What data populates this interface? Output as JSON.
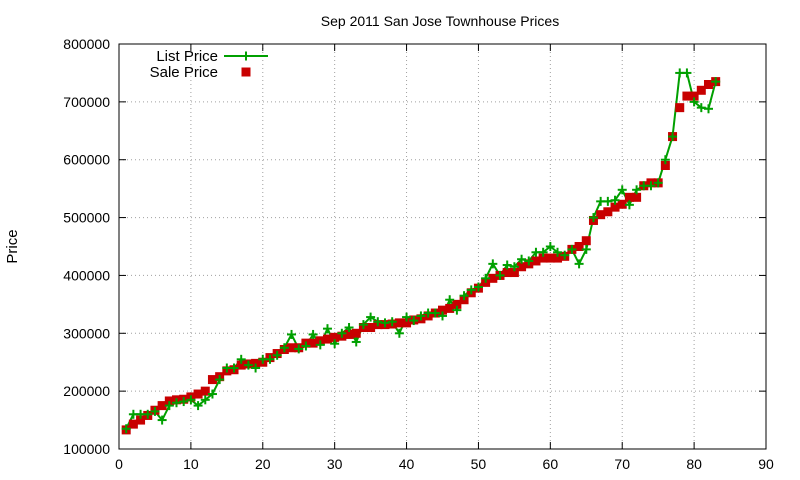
{
  "chart_data": {
    "type": "line",
    "title": "Sep 2011 San Jose Townhouse Prices",
    "xlabel": "",
    "ylabel": "Price",
    "xlim": [
      0,
      90
    ],
    "ylim": [
      100000,
      800000
    ],
    "xticks": [
      "0",
      "10",
      "20",
      "30",
      "40",
      "50",
      "60",
      "70",
      "80",
      "90"
    ],
    "yticks": [
      "100000",
      "200000",
      "300000",
      "400000",
      "500000",
      "600000",
      "700000",
      "800000"
    ],
    "grid": true,
    "legend_position": "top-left",
    "series": [
      {
        "name": "List Price",
        "style": "line-with-plus-markers",
        "color": "#00a000",
        "x": [
          1,
          2,
          3,
          4,
          5,
          6,
          7,
          8,
          9,
          10,
          11,
          12,
          13,
          14,
          15,
          16,
          17,
          18,
          19,
          20,
          21,
          22,
          23,
          24,
          25,
          26,
          27,
          28,
          29,
          30,
          31,
          32,
          33,
          34,
          35,
          36,
          37,
          38,
          39,
          40,
          41,
          42,
          43,
          44,
          45,
          46,
          47,
          48,
          49,
          50,
          51,
          52,
          53,
          54,
          55,
          56,
          57,
          58,
          59,
          60,
          61,
          62,
          63,
          64,
          65,
          66,
          67,
          68,
          69,
          70,
          71,
          72,
          73,
          74,
          75,
          76,
          77,
          78,
          79,
          80,
          81,
          82,
          83
        ],
        "y": [
          135000,
          160000,
          160000,
          160000,
          165000,
          150000,
          175000,
          180000,
          182000,
          185000,
          175000,
          185000,
          195000,
          220000,
          240000,
          240000,
          255000,
          245000,
          240000,
          255000,
          255000,
          262000,
          275000,
          298000,
          273000,
          278000,
          298000,
          280000,
          308000,
          282000,
          300000,
          310000,
          285000,
          315000,
          328000,
          320000,
          318000,
          320000,
          300000,
          328000,
          322000,
          330000,
          335000,
          335000,
          330000,
          358000,
          340000,
          365000,
          375000,
          380000,
          395000,
          420000,
          400000,
          418000,
          415000,
          428000,
          425000,
          440000,
          440000,
          450000,
          440000,
          435000,
          445000,
          420000,
          445000,
          500000,
          528000,
          528000,
          530000,
          548000,
          522000,
          548000,
          555000,
          555000,
          560000,
          600000,
          640000,
          750000,
          750000,
          700000,
          690000,
          688000,
          735000
        ]
      },
      {
        "name": "Sale Price",
        "style": "square-markers",
        "color": "#c80000",
        "x": [
          1,
          2,
          3,
          4,
          5,
          6,
          7,
          8,
          9,
          10,
          11,
          12,
          13,
          14,
          15,
          16,
          17,
          18,
          19,
          20,
          21,
          22,
          23,
          24,
          25,
          26,
          27,
          28,
          29,
          30,
          31,
          32,
          33,
          34,
          35,
          36,
          37,
          38,
          39,
          40,
          41,
          42,
          43,
          44,
          45,
          46,
          47,
          48,
          49,
          50,
          51,
          52,
          53,
          54,
          55,
          56,
          57,
          58,
          59,
          60,
          61,
          62,
          63,
          64,
          65,
          66,
          67,
          68,
          69,
          70,
          71,
          72,
          73,
          74,
          75,
          76,
          77,
          78,
          79,
          80,
          81,
          82,
          83
        ],
        "y": [
          133000,
          143000,
          150000,
          158000,
          167000,
          175000,
          183000,
          185000,
          186000,
          190000,
          195000,
          200000,
          220000,
          225000,
          235000,
          237000,
          245000,
          247000,
          248000,
          250000,
          258000,
          265000,
          272000,
          275000,
          275000,
          283000,
          283000,
          287000,
          290000,
          293000,
          295000,
          298000,
          300000,
          310000,
          310000,
          315000,
          315000,
          316000,
          318000,
          318000,
          323000,
          325000,
          330000,
          335000,
          340000,
          343000,
          350000,
          358000,
          370000,
          378000,
          388000,
          395000,
          400000,
          405000,
          405000,
          415000,
          420000,
          425000,
          430000,
          430000,
          430000,
          433000,
          445000,
          450000,
          460000,
          495000,
          505000,
          510000,
          518000,
          523000,
          535000,
          535000,
          555000,
          560000,
          560000,
          590000,
          640000,
          690000,
          710000,
          710000,
          720000,
          730000,
          735000
        ]
      }
    ]
  }
}
